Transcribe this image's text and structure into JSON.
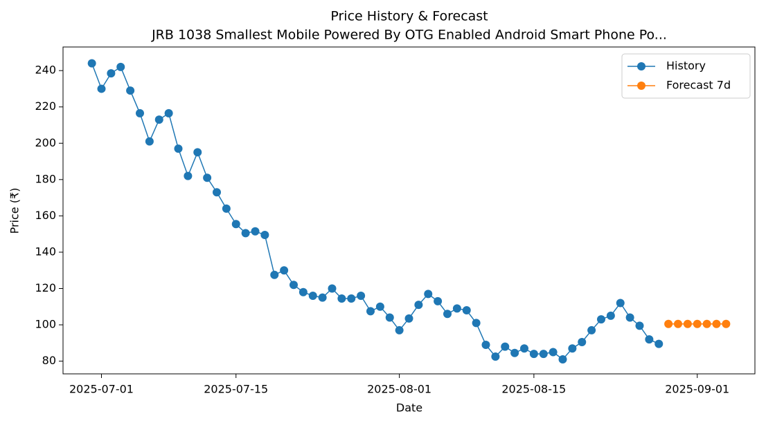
{
  "chart_data": {
    "type": "line",
    "title": "Price History & Forecast",
    "subtitle": "JRB 1038 Smallest Mobile Powered By OTG Enabled Android Smart Phone Po...",
    "x_label": "Date",
    "y_label": "Price (₹)",
    "series": [
      {
        "name": "History",
        "color": "#1f77b4",
        "x": [
          "2025-06-30",
          "2025-07-01",
          "2025-07-02",
          "2025-07-03",
          "2025-07-04",
          "2025-07-05",
          "2025-07-06",
          "2025-07-07",
          "2025-07-08",
          "2025-07-09",
          "2025-07-10",
          "2025-07-11",
          "2025-07-12",
          "2025-07-13",
          "2025-07-14",
          "2025-07-15",
          "2025-07-16",
          "2025-07-17",
          "2025-07-18",
          "2025-07-19",
          "2025-07-20",
          "2025-07-21",
          "2025-07-22",
          "2025-07-23",
          "2025-07-24",
          "2025-07-25",
          "2025-07-26",
          "2025-07-27",
          "2025-07-28",
          "2025-07-29",
          "2025-07-30",
          "2025-07-31",
          "2025-08-01",
          "2025-08-02",
          "2025-08-03",
          "2025-08-04",
          "2025-08-05",
          "2025-08-06",
          "2025-08-07",
          "2025-08-08",
          "2025-08-09",
          "2025-08-10",
          "2025-08-11",
          "2025-08-12",
          "2025-08-13",
          "2025-08-14",
          "2025-08-15",
          "2025-08-16",
          "2025-08-17",
          "2025-08-18",
          "2025-08-19",
          "2025-08-20",
          "2025-08-21",
          "2025-08-22",
          "2025-08-23",
          "2025-08-24",
          "2025-08-25",
          "2025-08-26",
          "2025-08-27",
          "2025-08-28"
        ],
        "values": [
          244,
          230,
          238.5,
          242,
          229,
          216.5,
          201,
          213,
          216.5,
          197,
          182,
          195,
          181,
          173,
          164,
          155.5,
          150.5,
          151.5,
          149.5,
          127.5,
          130,
          122,
          118,
          116,
          115,
          120,
          114.5,
          114.5,
          116,
          107.5,
          110,
          104,
          97,
          103.5,
          111,
          117,
          113,
          106,
          109,
          108,
          101,
          89,
          82.5,
          88,
          84.5,
          87,
          84,
          84,
          85,
          81,
          87,
          90.5,
          97,
          103,
          105,
          112,
          104,
          99.5,
          92,
          89.5
        ]
      },
      {
        "name": "Forecast 7d",
        "color": "#ff7f0e",
        "x": [
          "2025-08-29",
          "2025-08-30",
          "2025-08-31",
          "2025-09-01",
          "2025-09-02",
          "2025-09-03",
          "2025-09-04"
        ],
        "values": [
          100.5,
          100.5,
          100.5,
          100.5,
          100.5,
          100.5,
          100.5
        ]
      }
    ],
    "xlim": [
      "2025-06-27",
      "2025-09-07"
    ],
    "xticks": [
      "2025-07-01",
      "2025-07-15",
      "2025-08-01",
      "2025-08-15",
      "2025-09-01"
    ],
    "ylim": [
      73,
      253
    ],
    "yticks": [
      80,
      100,
      120,
      140,
      160,
      180,
      200,
      220,
      240
    ],
    "legend": "upper right"
  }
}
